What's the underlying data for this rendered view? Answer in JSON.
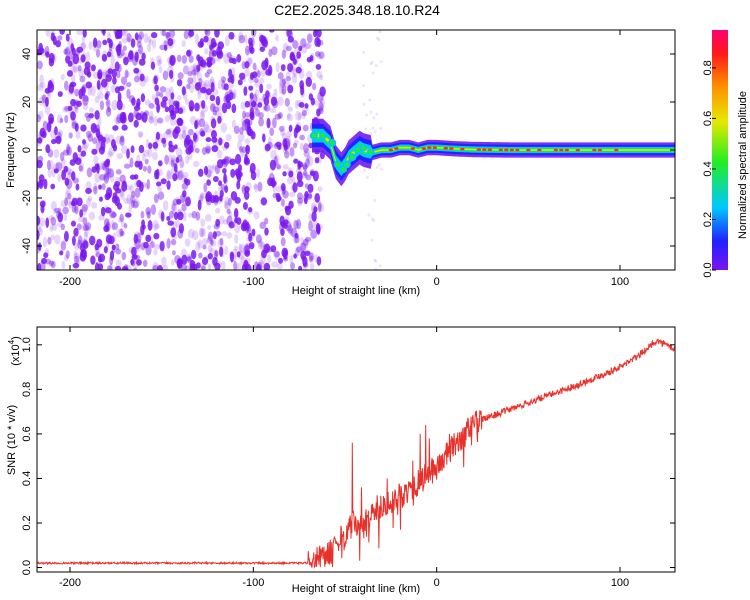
{
  "title": "C2E2.2025.348.18.10.R24",
  "colors": {
    "noise": "#7a16f0",
    "snr_line": "#e8312a",
    "colorbar": [
      "#7a16f0",
      "#2020ff",
      "#00c8ff",
      "#22ee22",
      "#e8e800",
      "#ff8c00",
      "#ff1a1a",
      "#ff0070"
    ]
  },
  "chart_data": [
    {
      "type": "heatmap",
      "title": "",
      "xlabel": "Height of straight line (km)",
      "ylabel": "Frequency (Hz)",
      "xlim": [
        -218,
        130
      ],
      "ylim": [
        -50,
        50
      ],
      "x_ticks": [
        -200,
        -100,
        0,
        100
      ],
      "y_ticks": [
        -40,
        -20,
        0,
        20,
        40
      ],
      "x_tick_labels": [
        "-200",
        "-100",
        "0",
        "100"
      ],
      "y_tick_labels": [
        "-40",
        "-20",
        "0",
        "20",
        "40"
      ],
      "noise_region_x": [
        -218,
        -65
      ],
      "signal_track": {
        "x": [
          -68,
          -62,
          -58,
          -55,
          -52,
          -50,
          -48,
          -45,
          -42,
          -40,
          -35,
          -30,
          -25,
          -20,
          -15,
          -10,
          -5,
          0,
          10,
          20,
          40,
          60,
          80,
          100,
          130
        ],
        "frequency": [
          6,
          6,
          3,
          -5,
          -8,
          -6,
          -3,
          -1,
          1,
          0,
          -1,
          0,
          0,
          1,
          1,
          0,
          1,
          1,
          0.5,
          0.2,
          0,
          0,
          0,
          0,
          0
        ]
      },
      "colorbar": {
        "label": "Normalized spectral amplitude",
        "range": [
          0.0,
          0.95
        ],
        "ticks": [
          0.0,
          0.2,
          0.4,
          0.6,
          0.8
        ],
        "tick_labels": [
          "0.0",
          "0.2",
          "0.4",
          "0.6",
          "0.8"
        ]
      }
    },
    {
      "type": "line",
      "title": "",
      "xlabel": "Height of straight line (km)",
      "ylabel": "SNR (10 * v/v)",
      "scale_label": "(x10",
      "scale_exponent": "4",
      "scale_close": ")",
      "xlim": [
        -218,
        130
      ],
      "ylim": [
        -0.02,
        1.08
      ],
      "x_ticks": [
        -200,
        -100,
        0,
        100
      ],
      "y_ticks": [
        0.0,
        0.2,
        0.4,
        0.6,
        0.8,
        1.0
      ],
      "x_tick_labels": [
        "-200",
        "-100",
        "0",
        "100"
      ],
      "y_tick_labels": [
        "0.0",
        "0.2",
        "0.4",
        "0.6",
        "0.8",
        "1.0"
      ],
      "series": [
        {
          "name": "SNR",
          "x": [
            -218,
            -100,
            -70,
            -60,
            -50,
            -45,
            -40,
            -35,
            -30,
            -20,
            -10,
            0,
            10,
            20,
            30,
            40,
            60,
            80,
            100,
            110,
            120,
            130
          ],
          "y": [
            0.02,
            0.02,
            0.02,
            0.05,
            0.15,
            0.2,
            0.18,
            0.25,
            0.28,
            0.32,
            0.38,
            0.45,
            0.55,
            0.65,
            0.68,
            0.71,
            0.77,
            0.83,
            0.9,
            0.95,
            1.02,
            0.98
          ]
        }
      ],
      "spikes": [
        {
          "x": -46,
          "y": 0.56
        },
        {
          "x": -41,
          "y": 0.36
        },
        {
          "x": -27,
          "y": 0.4
        },
        {
          "x": -13,
          "y": 0.48
        },
        {
          "x": -9,
          "y": 0.6
        },
        {
          "x": -6,
          "y": 0.64
        },
        {
          "x": -4,
          "y": 0.58
        },
        {
          "x": 7,
          "y": 0.6
        },
        {
          "x": 14,
          "y": 0.56
        },
        {
          "x": 22,
          "y": 0.6
        }
      ]
    }
  ]
}
